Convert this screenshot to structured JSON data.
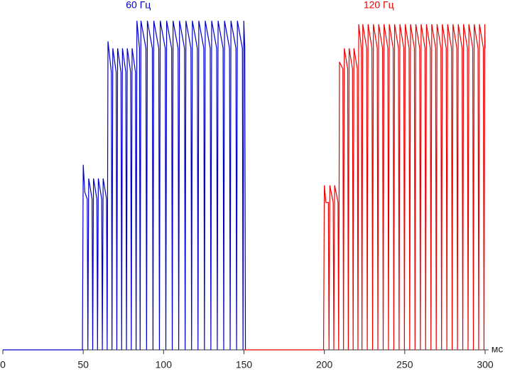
{
  "chart_data": {
    "type": "line",
    "xlabel": "мс",
    "xlim": [
      0,
      300
    ],
    "xticks": [
      0,
      50,
      100,
      150,
      200,
      250,
      300
    ],
    "ylim": [
      0,
      100
    ],
    "series": [
      {
        "name": "60 Гц",
        "color": "#0000cc",
        "x": [
          0,
          49.5,
          50,
          51,
          52.5,
          52.9,
          53.4,
          55.5,
          55.9,
          56.4,
          58.5,
          58.9,
          59.4,
          61.5,
          61.9,
          62.4,
          64.5,
          64.9,
          65.4,
          67.5,
          67.9,
          68.4,
          70.5,
          70.9,
          71.4,
          73.5,
          73.9,
          74.4,
          76.5,
          76.9,
          77.4,
          79.5,
          79.9,
          80.4,
          82.5,
          82.9,
          83.4,
          85,
          85.4,
          85.9,
          89,
          89.4,
          89.9,
          93,
          93.4,
          93.9,
          97,
          97.4,
          97.9,
          101,
          101.4,
          101.9,
          105,
          105.4,
          105.9,
          109,
          109.4,
          109.9,
          113,
          113.4,
          113.9,
          117,
          117.4,
          117.9,
          121,
          121.4,
          121.9,
          125,
          125.4,
          125.9,
          129,
          129.4,
          129.9,
          133,
          133.4,
          133.9,
          137,
          137.4,
          137.9,
          141,
          141.4,
          141.9,
          145,
          145.4,
          145.9,
          149,
          149.4,
          149.9,
          150.5,
          150.9
        ],
        "values": [
          0,
          0,
          54,
          46,
          44,
          0,
          50,
          44,
          0,
          50,
          44,
          0,
          50,
          44,
          0,
          50,
          44,
          0,
          90,
          81,
          0,
          88,
          81,
          0,
          88,
          81,
          0,
          88,
          81,
          0,
          88,
          81,
          0,
          88,
          81,
          0,
          96,
          88,
          0,
          96,
          88,
          0,
          96,
          88,
          0,
          96,
          88,
          0,
          96,
          88,
          0,
          96,
          88,
          0,
          96,
          88,
          0,
          96,
          88,
          0,
          96,
          88,
          0,
          96,
          88,
          0,
          96,
          88,
          0,
          96,
          88,
          0,
          96,
          88,
          0,
          96,
          88,
          0,
          96,
          88,
          0,
          96,
          88,
          0,
          96,
          88,
          0,
          96,
          88,
          0
        ]
      },
      {
        "name": "120 Гц",
        "color": "#ee0000",
        "x": [
          150,
          199.5,
          200,
          201,
          202.5,
          202.9,
          203.4,
          205.5,
          205.9,
          206.4,
          208.5,
          208.9,
          209.4,
          211.5,
          211.9,
          212.4,
          214.5,
          214.9,
          215.4,
          217.5,
          217.9,
          218.4,
          220.5,
          220.9,
          221.4,
          223,
          223.4,
          223.9,
          226.3,
          226.7,
          227.2,
          229.6,
          230,
          230.5,
          232.9,
          233.3,
          233.8,
          236.2,
          236.6,
          237.1,
          239.5,
          239.9,
          240.4,
          242.8,
          243.2,
          243.7,
          246.1,
          246.5,
          247,
          249.4,
          249.8,
          250.3,
          252.7,
          253.1,
          253.6,
          256,
          256.4,
          256.9,
          259.3,
          259.7,
          260.2,
          262.6,
          263,
          263.5,
          265.9,
          266.3,
          266.8,
          269.2,
          269.6,
          270.1,
          272.5,
          272.9,
          273.4,
          275.8,
          276.2,
          276.7,
          279.1,
          279.5,
          280,
          282.4,
          282.8,
          283.3,
          285.7,
          286.1,
          286.6,
          289,
          289.4,
          289.9,
          292.3,
          292.7,
          293.2,
          295.6,
          296,
          296.5,
          298.9,
          299.3,
          299.8,
          300
        ],
        "values": [
          0,
          0,
          48,
          43,
          43,
          0,
          48,
          43,
          0,
          48,
          43,
          0,
          84,
          82,
          0,
          88,
          82,
          0,
          88,
          82,
          0,
          88,
          82,
          0,
          95,
          88,
          0,
          95,
          88,
          0,
          95,
          88,
          0,
          95,
          88,
          0,
          95,
          88,
          0,
          95,
          88,
          0,
          95,
          88,
          0,
          95,
          88,
          0,
          95,
          88,
          0,
          95,
          88,
          0,
          95,
          88,
          0,
          95,
          88,
          0,
          95,
          88,
          0,
          95,
          88,
          0,
          95,
          88,
          0,
          95,
          88,
          0,
          95,
          88,
          0,
          95,
          88,
          0,
          95,
          88,
          0,
          95,
          88,
          0,
          95,
          88,
          0,
          95,
          88,
          0,
          95,
          88,
          0,
          95,
          88,
          0,
          95,
          88
        ]
      }
    ]
  }
}
